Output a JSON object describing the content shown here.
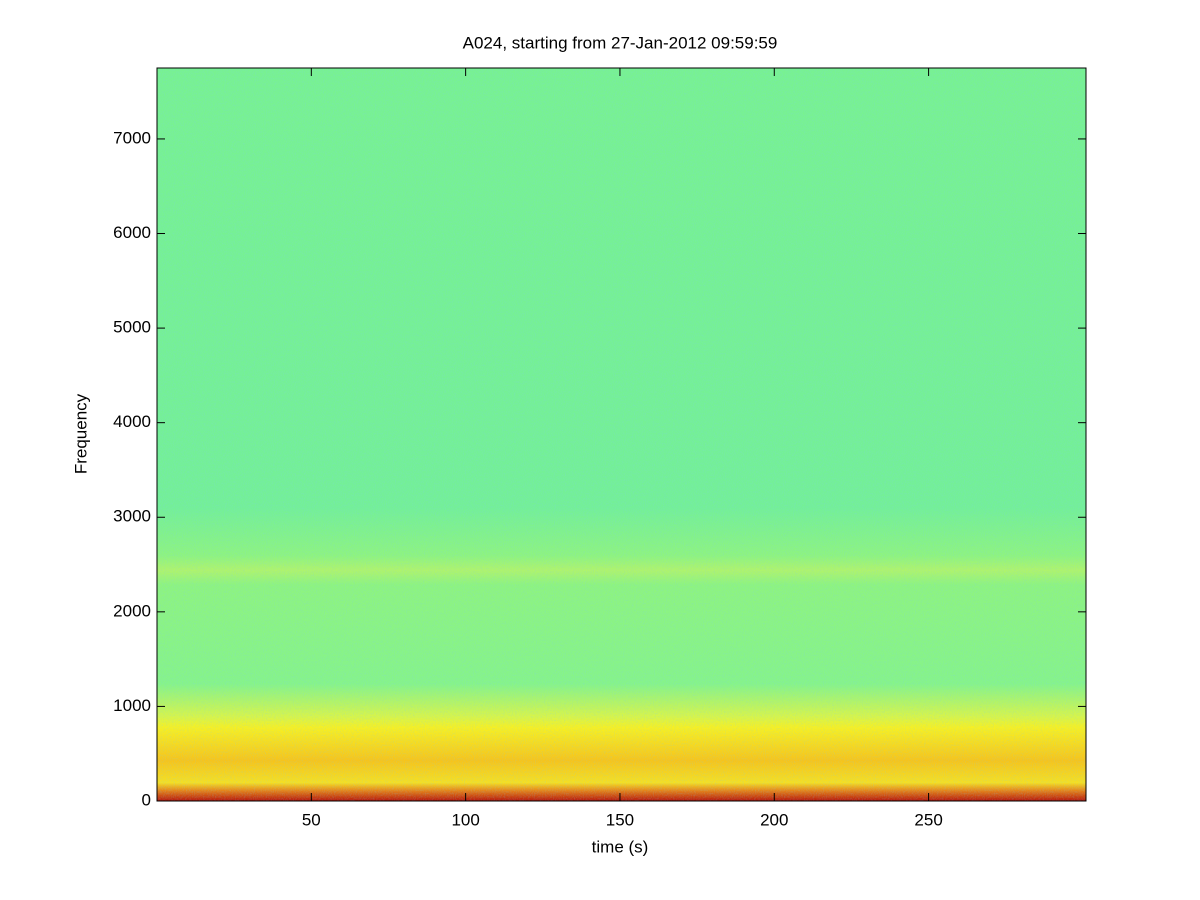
{
  "chart_data": {
    "type": "spectrogram",
    "title": "A024, starting from 27-Jan-2012 09:59:59",
    "x_label": "time (s)",
    "y_label": "Frequency",
    "xlim": [
      0,
      301
    ],
    "xticks": [
      50,
      100,
      150,
      200,
      250
    ],
    "ylim": [
      0,
      7750
    ],
    "yticks": [
      0,
      1000,
      2000,
      3000,
      4000,
      5000,
      6000,
      7000
    ]
  }
}
